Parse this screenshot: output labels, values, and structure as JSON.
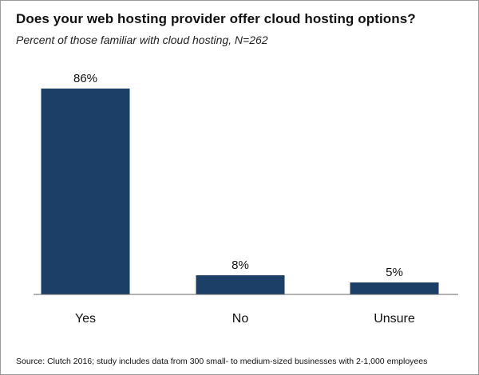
{
  "title": "Does your web hosting provider offer cloud hosting options?",
  "subtitle": "Percent of those familiar with cloud hosting, N=262",
  "source": "Source: Clutch 2016; study includes data from 300 small- to medium-sized businesses with 2-1,000 employees",
  "colors": {
    "bar": "#1b3f66",
    "axis": "#666666",
    "text": "#111111"
  },
  "chart_data": {
    "type": "bar",
    "categories": [
      "Yes",
      "No",
      "Unsure"
    ],
    "values": [
      86,
      8,
      5
    ],
    "value_labels": [
      "86%",
      "8%",
      "5%"
    ],
    "title": "Does your web hosting provider offer cloud hosting options?",
    "subtitle": "Percent of those familiar with cloud hosting, N=262",
    "xlabel": "",
    "ylabel": "",
    "ylim": [
      0,
      100
    ],
    "grid": false,
    "legend": "none"
  }
}
